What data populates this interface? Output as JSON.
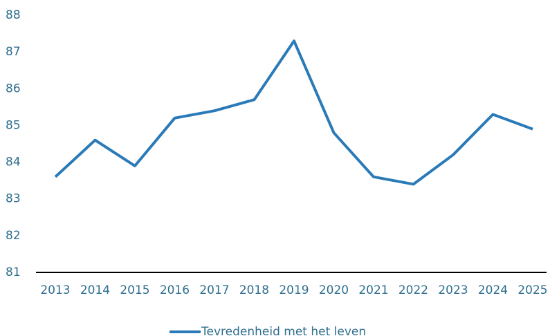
{
  "chart_data": {
    "type": "line",
    "categories": [
      "2013",
      "2014",
      "2015",
      "2016",
      "2017",
      "2018",
      "2019",
      "2020",
      "2021",
      "2022",
      "2023",
      "2024",
      "2025"
    ],
    "series": [
      {
        "name": "Tevredenheid met het leven",
        "color": "#2a7ab8",
        "values": [
          83.6,
          84.6,
          83.9,
          85.2,
          85.4,
          85.7,
          87.3,
          84.8,
          83.6,
          83.4,
          84.2,
          85.3,
          84.9
        ]
      }
    ],
    "ylim": [
      81,
      88
    ],
    "yticks": [
      81,
      82,
      83,
      84,
      85,
      86,
      87,
      88
    ],
    "grid": false,
    "legend": "bottom"
  }
}
